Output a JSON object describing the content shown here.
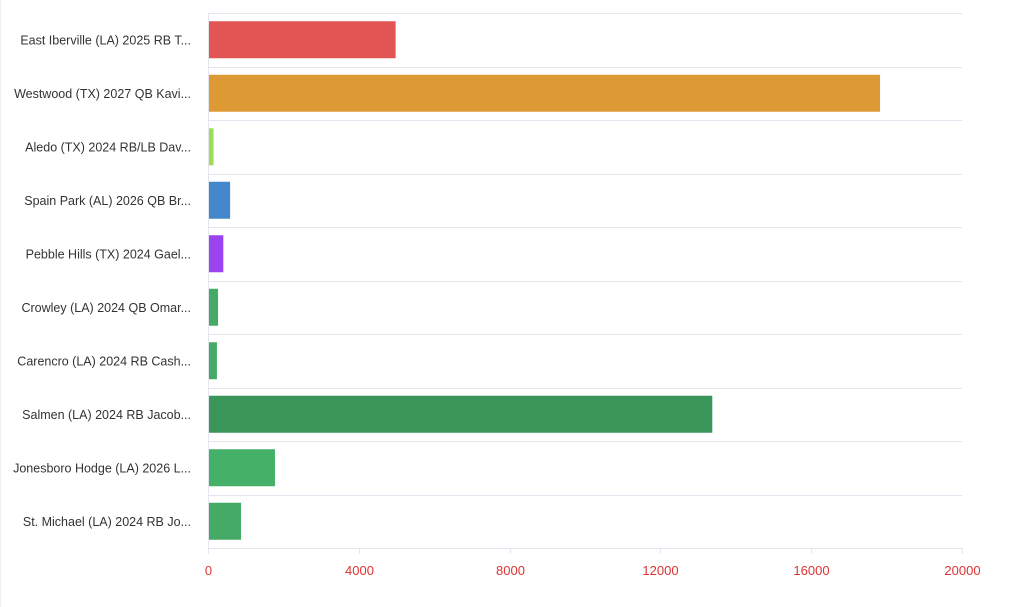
{
  "chart_data": {
    "type": "bar",
    "orientation": "horizontal",
    "categories": [
      "East Iberville (LA) 2025 RB T...",
      "Westwood (TX) 2027 QB Kavi...",
      "Aledo (TX) 2024 RB/LB Dav...",
      "Spain Park (AL) 2026 QB Br...",
      "Pebble Hills (TX) 2024 Gael...",
      "Crowley (LA) 2024 QB Omar...",
      "Carencro (LA) 2024 RB Cash...",
      "Salmen (LA) 2024 RB Jacob...",
      "Jonesboro Hodge (LA) 2026 L...",
      "St. Michael (LA) 2024 RB Jo..."
    ],
    "values": [
      4950,
      17800,
      120,
      560,
      380,
      240,
      210,
      13350,
      1750,
      850
    ],
    "colors": [
      "#e35454",
      "#dd9933",
      "#9ddd55",
      "#4488cc",
      "#9944ee",
      "#44aa66",
      "#44aa66",
      "#3a9558",
      "#44b068",
      "#44aa66"
    ],
    "xlim": [
      0,
      20000
    ],
    "x_ticks": [
      "0",
      "4000",
      "8000",
      "12000",
      "16000",
      "20000"
    ],
    "x_tick_values": [
      0,
      4000,
      8000,
      12000,
      16000,
      20000
    ],
    "tick_label_color": "#dd3333",
    "grid": true,
    "grid_color": "#e3e6ee",
    "title": "",
    "xlabel": "",
    "ylabel": ""
  }
}
